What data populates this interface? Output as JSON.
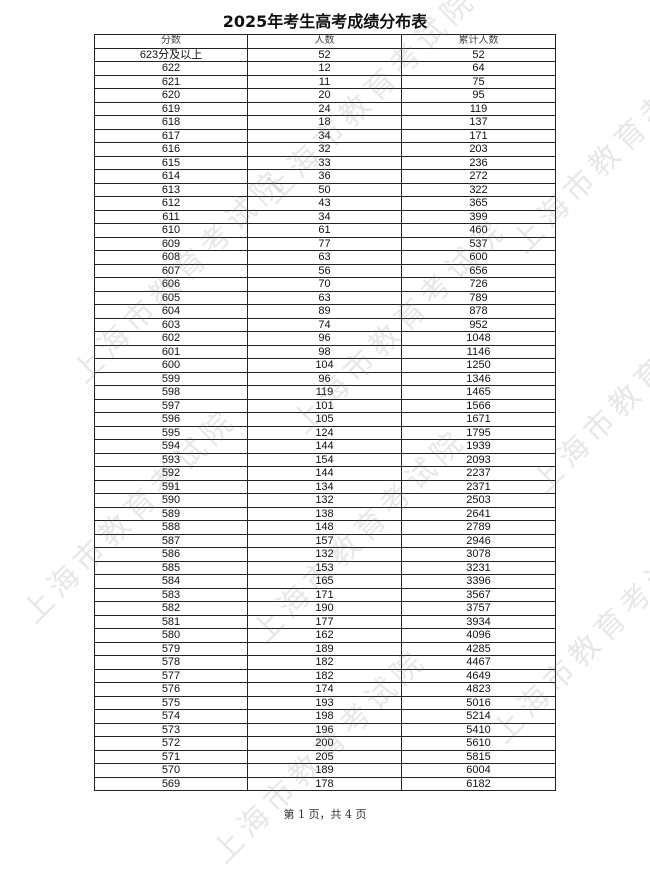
{
  "title": "2025年考生高考成绩分布表",
  "watermark": "上海市教育考试院",
  "table": {
    "headers": [
      "分数",
      "人数",
      "累计人数"
    ],
    "rows": [
      [
        "623分及以上",
        "52",
        "52"
      ],
      [
        "622",
        "12",
        "64"
      ],
      [
        "621",
        "11",
        "75"
      ],
      [
        "620",
        "20",
        "95"
      ],
      [
        "619",
        "24",
        "119"
      ],
      [
        "618",
        "18",
        "137"
      ],
      [
        "617",
        "34",
        "171"
      ],
      [
        "616",
        "32",
        "203"
      ],
      [
        "615",
        "33",
        "236"
      ],
      [
        "614",
        "36",
        "272"
      ],
      [
        "613",
        "50",
        "322"
      ],
      [
        "612",
        "43",
        "365"
      ],
      [
        "611",
        "34",
        "399"
      ],
      [
        "610",
        "61",
        "460"
      ],
      [
        "609",
        "77",
        "537"
      ],
      [
        "608",
        "63",
        "600"
      ],
      [
        "607",
        "56",
        "656"
      ],
      [
        "606",
        "70",
        "726"
      ],
      [
        "605",
        "63",
        "789"
      ],
      [
        "604",
        "89",
        "878"
      ],
      [
        "603",
        "74",
        "952"
      ],
      [
        "602",
        "96",
        "1048"
      ],
      [
        "601",
        "98",
        "1146"
      ],
      [
        "600",
        "104",
        "1250"
      ],
      [
        "599",
        "96",
        "1346"
      ],
      [
        "598",
        "119",
        "1465"
      ],
      [
        "597",
        "101",
        "1566"
      ],
      [
        "596",
        "105",
        "1671"
      ],
      [
        "595",
        "124",
        "1795"
      ],
      [
        "594",
        "144",
        "1939"
      ],
      [
        "593",
        "154",
        "2093"
      ],
      [
        "592",
        "144",
        "2237"
      ],
      [
        "591",
        "134",
        "2371"
      ],
      [
        "590",
        "132",
        "2503"
      ],
      [
        "589",
        "138",
        "2641"
      ],
      [
        "588",
        "148",
        "2789"
      ],
      [
        "587",
        "157",
        "2946"
      ],
      [
        "586",
        "132",
        "3078"
      ],
      [
        "585",
        "153",
        "3231"
      ],
      [
        "584",
        "165",
        "3396"
      ],
      [
        "583",
        "171",
        "3567"
      ],
      [
        "582",
        "190",
        "3757"
      ],
      [
        "581",
        "177",
        "3934"
      ],
      [
        "580",
        "162",
        "4096"
      ],
      [
        "579",
        "189",
        "4285"
      ],
      [
        "578",
        "182",
        "4467"
      ],
      [
        "577",
        "182",
        "4649"
      ],
      [
        "576",
        "174",
        "4823"
      ],
      [
        "575",
        "193",
        "5016"
      ],
      [
        "574",
        "198",
        "5214"
      ],
      [
        "573",
        "196",
        "5410"
      ],
      [
        "572",
        "200",
        "5610"
      ],
      [
        "571",
        "205",
        "5815"
      ],
      [
        "570",
        "189",
        "6004"
      ],
      [
        "569",
        "178",
        "6182"
      ]
    ]
  },
  "footer": "第 1 页，共 4 页"
}
